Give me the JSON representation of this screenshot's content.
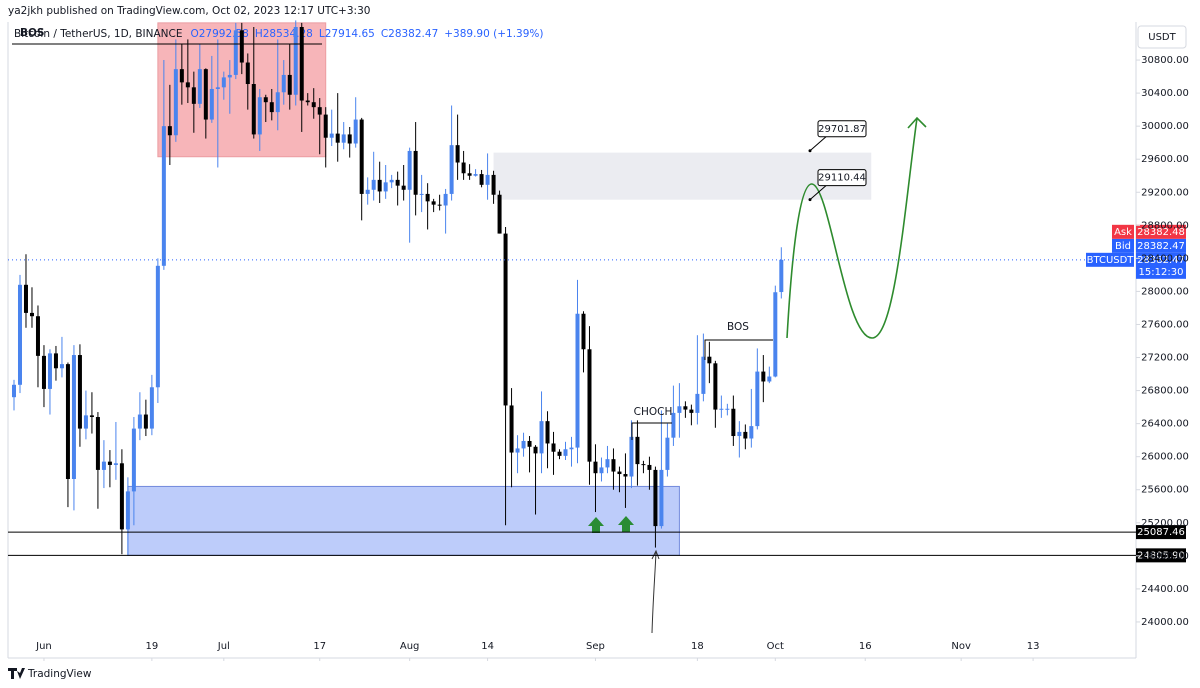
{
  "header": {
    "publisher": "ya2jkh published on TradingView.com, Oct 02, 2023 12:17 UTC+3:30"
  },
  "footer": {
    "brand": "TradingView"
  },
  "annotations": {
    "bos_top": "BOS",
    "bos": "BOS",
    "choch": "CHOCH"
  },
  "chart_data": {
    "type": "candlestick",
    "symbol": "Bitcoin / TetherUS, 1D, BINANCE",
    "ohlc_text": [
      "O27992.58",
      "H28534.28",
      "L27914.65",
      "C28382.47"
    ],
    "change": "+389.90 (+1.39%)",
    "currency": "USDT",
    "up_color": "#4a84ee",
    "down_color": "#000000",
    "x": [
      "2023-05-27",
      "2023-05-28",
      "2023-05-29",
      "2023-05-30",
      "2023-05-31",
      "2023-06-01",
      "2023-06-02",
      "2023-06-03",
      "2023-06-04",
      "2023-06-05",
      "2023-06-06",
      "2023-06-07",
      "2023-06-08",
      "2023-06-09",
      "2023-06-10",
      "2023-06-11",
      "2023-06-12",
      "2023-06-13",
      "2023-06-14",
      "2023-06-15",
      "2023-06-16",
      "2023-06-17",
      "2023-06-18",
      "2023-06-19",
      "2023-06-20",
      "2023-06-21",
      "2023-06-22",
      "2023-06-23",
      "2023-06-24",
      "2023-06-25",
      "2023-06-26",
      "2023-06-27",
      "2023-06-28",
      "2023-06-29",
      "2023-06-30",
      "2023-07-01",
      "2023-07-02",
      "2023-07-03",
      "2023-07-04",
      "2023-07-05",
      "2023-07-06",
      "2023-07-07",
      "2023-07-08",
      "2023-07-09",
      "2023-07-10",
      "2023-07-11",
      "2023-07-12",
      "2023-07-13",
      "2023-07-14",
      "2023-07-15",
      "2023-07-16",
      "2023-07-17",
      "2023-07-18",
      "2023-07-19",
      "2023-07-20",
      "2023-07-21",
      "2023-07-22",
      "2023-07-23",
      "2023-07-24",
      "2023-07-25",
      "2023-07-26",
      "2023-07-27",
      "2023-07-28",
      "2023-07-29",
      "2023-07-30",
      "2023-07-31",
      "2023-08-01",
      "2023-08-02",
      "2023-08-03",
      "2023-08-04",
      "2023-08-05",
      "2023-08-06",
      "2023-08-07",
      "2023-08-08",
      "2023-08-09",
      "2023-08-10",
      "2023-08-11",
      "2023-08-12",
      "2023-08-13",
      "2023-08-14",
      "2023-08-15",
      "2023-08-16",
      "2023-08-17",
      "2023-08-18",
      "2023-08-19",
      "2023-08-20",
      "2023-08-21",
      "2023-08-22",
      "2023-08-23",
      "2023-08-24",
      "2023-08-25",
      "2023-08-26",
      "2023-08-27",
      "2023-08-28",
      "2023-08-29",
      "2023-08-30",
      "2023-08-31",
      "2023-09-01",
      "2023-09-02",
      "2023-09-03",
      "2023-09-04",
      "2023-09-05",
      "2023-09-06",
      "2023-09-07",
      "2023-09-08",
      "2023-09-09",
      "2023-09-10",
      "2023-09-11",
      "2023-09-12",
      "2023-09-13",
      "2023-09-14",
      "2023-09-15",
      "2023-09-16",
      "2023-09-17",
      "2023-09-18",
      "2023-09-19",
      "2023-09-20",
      "2023-09-21",
      "2023-09-22",
      "2023-09-23",
      "2023-09-24",
      "2023-09-25",
      "2023-09-26",
      "2023-09-27",
      "2023-09-28",
      "2023-09-29",
      "2023-09-30",
      "2023-10-01",
      "2023-10-02"
    ],
    "open": [
      26720,
      26870,
      28080,
      27740,
      27700,
      27220,
      26820,
      27250,
      27070,
      27120,
      25730,
      27230,
      26340,
      26500,
      26480,
      25840,
      25940,
      25900,
      25920,
      25120,
      25580,
      26340,
      26510,
      26340,
      26840,
      28310,
      30000,
      29890,
      30690,
      30530,
      30470,
      30270,
      30690,
      30080,
      30450,
      30470,
      30590,
      30620,
      31160,
      30770,
      30510,
      29900,
      30350,
      30290,
      30170,
      30410,
      30620,
      30380,
      31200,
      30310,
      30290,
      30230,
      30140,
      29860,
      29910,
      29800,
      29900,
      29790,
      30080,
      29180,
      29230,
      29350,
      29210,
      29320,
      29350,
      29280,
      29230,
      29700,
      29170,
      29180,
      29090,
      29050,
      29040,
      29180,
      29770,
      29560,
      29430,
      29400,
      29420,
      29290,
      29410,
      29170,
      28700,
      26620,
      26050,
      26100,
      26190,
      26120,
      26040,
      26430,
      26160,
      26060,
      26010,
      26090,
      26110,
      27730,
      27300,
      25940,
      25800,
      25870,
      25970,
      25820,
      25790,
      25760,
      26240,
      25910,
      25900,
      25840,
      25160,
      25840,
      26230,
      26530,
      26610,
      26570,
      26530,
      26760,
      27210,
      27130,
      26570,
      26580,
      26580,
      26250,
      26300,
      26220,
      26370,
      27030,
      26910,
      26970,
      27992.58
    ],
    "high": [
      26930,
      28200,
      28450,
      28050,
      27830,
      27350,
      27300,
      27340,
      27450,
      27140,
      27350,
      27360,
      26800,
      26780,
      26540,
      26200,
      26080,
      26420,
      26090,
      25750,
      26480,
      26780,
      26690,
      26990,
      28400,
      30800,
      30500,
      31050,
      31000,
      31050,
      30660,
      31000,
      30700,
      30850,
      31050,
      30660,
      30800,
      31250,
      31250,
      30880,
      31200,
      30450,
      30380,
      30450,
      31050,
      30800,
      30990,
      31280,
      31250,
      30400,
      30460,
      30340,
      30230,
      30200,
      30400,
      30050,
      29990,
      30350,
      30100,
      29380,
      29690,
      29570,
      29530,
      29410,
      29450,
      29530,
      29740,
      30050,
      29410,
      29310,
      29120,
      29170,
      29240,
      30250,
      30140,
      29700,
      29540,
      29480,
      29470,
      29670,
      29460,
      29220,
      28780,
      26830,
      26260,
      26290,
      26250,
      26140,
      26790,
      26550,
      26300,
      26090,
      26180,
      26240,
      28140,
      27760,
      27580,
      26150,
      25990,
      26130,
      26100,
      25880,
      26040,
      26440,
      26440,
      25950,
      26000,
      25880,
      26560,
      26400,
      26860,
      26890,
      26670,
      26630,
      27470,
      27490,
      27390,
      27160,
      26740,
      26640,
      26740,
      26430,
      26390,
      26820,
      27310,
      27230,
      27090,
      28070,
      28534.28
    ],
    "low": [
      26560,
      26770,
      27560,
      27560,
      26840,
      26600,
      26510,
      26920,
      26960,
      25390,
      25350,
      26120,
      26210,
      26280,
      25370,
      25620,
      25630,
      25720,
      24820,
      24800,
      25170,
      26200,
      26250,
      26260,
      26650,
      28260,
      29530,
      29810,
      30260,
      30280,
      29920,
      30220,
      29850,
      30040,
      29500,
      30320,
      30150,
      30570,
      30630,
      30200,
      29850,
      29700,
      30050,
      30070,
      29950,
      30260,
      30200,
      30250,
      29930,
      30250,
      30090,
      29660,
      29500,
      29760,
      29570,
      29720,
      29620,
      29740,
      28860,
      29050,
      29100,
      29070,
      29120,
      29250,
      29040,
      29100,
      28590,
      28920,
      28960,
      28750,
      28960,
      28980,
      28700,
      29100,
      29350,
      29350,
      29350,
      29390,
      29260,
      29110,
      29060,
      28700,
      25170,
      25630,
      25800,
      26000,
      25810,
      25300,
      25800,
      25860,
      25780,
      25970,
      25960,
      25880,
      25920,
      27020,
      25660,
      25330,
      25700,
      25800,
      25600,
      25570,
      25380,
      25620,
      25650,
      25800,
      25600,
      24900,
      25130,
      25760,
      26130,
      26230,
      26470,
      26380,
      26390,
      26670,
      26890,
      26350,
      26470,
      26500,
      26130,
      25990,
      26090,
      26110,
      26330,
      26660,
      26890,
      26960,
      27914.65
    ],
    "close": [
      26870,
      28080,
      27740,
      27700,
      27220,
      26820,
      27250,
      27070,
      27120,
      25730,
      27230,
      26340,
      26500,
      26480,
      25840,
      25940,
      25900,
      25920,
      25120,
      25580,
      26340,
      26510,
      26340,
      26840,
      28310,
      30000,
      29890,
      30690,
      30530,
      30470,
      30270,
      30690,
      30080,
      30450,
      30470,
      30590,
      30620,
      31160,
      30770,
      30510,
      29900,
      30350,
      30290,
      30170,
      30410,
      30620,
      30380,
      31200,
      30310,
      30290,
      30230,
      30140,
      29860,
      29910,
      29800,
      29900,
      29790,
      30080,
      29180,
      29230,
      29350,
      29210,
      29320,
      29350,
      29280,
      29230,
      29700,
      29170,
      29180,
      29090,
      29050,
      29040,
      29180,
      29770,
      29560,
      29430,
      29400,
      29420,
      29290,
      29410,
      29170,
      28700,
      26620,
      26050,
      26100,
      26190,
      26120,
      26040,
      26430,
      26160,
      26060,
      26010,
      26090,
      26110,
      27730,
      27300,
      25940,
      25800,
      25870,
      25970,
      25820,
      25790,
      25760,
      26240,
      25910,
      25900,
      25840,
      25160,
      25840,
      26230,
      26530,
      26610,
      26570,
      26530,
      26760,
      27210,
      27130,
      26570,
      26580,
      26580,
      26250,
      26300,
      26220,
      26370,
      27030,
      26910,
      26970,
      27990,
      28382.47
    ],
    "xlim": [
      "2023-05-26",
      "2023-11-30"
    ],
    "xticks": [
      {
        "value": "2023-06-01",
        "label": "Jun"
      },
      {
        "value": "2023-06-19",
        "label": "19"
      },
      {
        "value": "2023-07-01",
        "label": "Jul"
      },
      {
        "value": "2023-07-17",
        "label": "17"
      },
      {
        "value": "2023-08-01",
        "label": "Aug"
      },
      {
        "value": "2023-08-14",
        "label": "14"
      },
      {
        "value": "2023-09-01",
        "label": "Sep"
      },
      {
        "value": "2023-09-18",
        "label": "18"
      },
      {
        "value": "2023-10-01",
        "label": "Oct"
      },
      {
        "value": "2023-10-16",
        "label": "16"
      },
      {
        "value": "2023-11-01",
        "label": "Nov"
      },
      {
        "value": "2023-11-13",
        "label": "13"
      }
    ],
    "ylim": [
      23600,
      31200
    ],
    "yticks": [
      {
        "value": 24000,
        "label": "24000.00"
      },
      {
        "value": 24400,
        "label": "24400.00"
      },
      {
        "value": 24800,
        "label": "24800.00"
      },
      {
        "value": 25200,
        "label": "25200.00"
      },
      {
        "value": 25600,
        "label": "25600.00"
      },
      {
        "value": 26000,
        "label": "26000.00"
      },
      {
        "value": 26400,
        "label": "26400.00"
      },
      {
        "value": 26800,
        "label": "26800.00"
      },
      {
        "value": 27200,
        "label": "27200.00"
      },
      {
        "value": 27600,
        "label": "27600.00"
      },
      {
        "value": 28000,
        "label": "28000.00"
      },
      {
        "value": 28400,
        "label": "28400.00"
      },
      {
        "value": 28800,
        "label": "28800.00"
      },
      {
        "value": 29200,
        "label": "29200.00"
      },
      {
        "value": 29600,
        "label": "29600.00"
      },
      {
        "value": 30000,
        "label": "30000.00"
      },
      {
        "value": 30400,
        "label": "30400.00"
      },
      {
        "value": 30800,
        "label": "30800.00"
      }
    ],
    "zones": [
      {
        "color": "#f6a9ad",
        "x": [
          "2023-06-20",
          "2023-07-18"
        ],
        "y": [
          29630,
          31250
        ]
      },
      {
        "color": "#e8e9ee",
        "x": [
          "2023-08-15",
          "2023-10-17"
        ],
        "y": [
          29110,
          29680
        ]
      },
      {
        "color": "#b2c4fa",
        "x": [
          "2023-06-15",
          "2023-09-15"
        ],
        "y": [
          24805.9,
          25640
        ]
      }
    ],
    "callouts": [
      29701.87,
      29110.44
    ],
    "levels": [
      25087.46,
      {
        "value": 24805.9,
        "label": "24805.90"
      }
    ],
    "price_tags": [
      {
        "name": "Ask",
        "value": 28382.48,
        "color": "#f23645"
      },
      {
        "name": "Bid",
        "value": 28382.47,
        "color": "#2962ff"
      },
      {
        "name": "BTCUSDT",
        "value": 28382.47,
        "timer": "15:12:30",
        "color": "#2962ff"
      }
    ]
  }
}
